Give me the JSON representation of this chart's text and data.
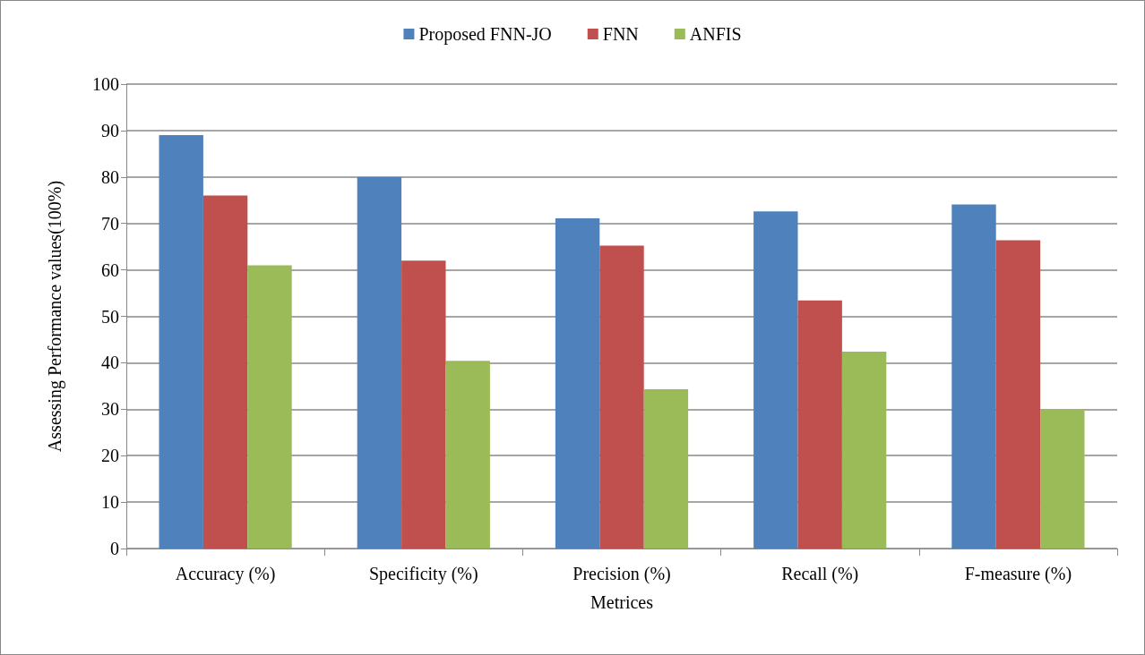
{
  "chart_data": {
    "type": "bar",
    "xlabel": "Metrices",
    "ylabel": "Assessing Performance values(100%)",
    "categories": [
      "Accuracy (%)",
      "Specificity (%)",
      "Precision (%)",
      "Recall (%)",
      "F-measure (%)"
    ],
    "series": [
      {
        "name": "Proposed FNN-JO",
        "color": "#4f81bd",
        "values": [
          89,
          80,
          71.1,
          72.6,
          74.1
        ]
      },
      {
        "name": "FNN",
        "color": "#c0504d",
        "values": [
          76,
          62,
          65.2,
          53.4,
          66.4
        ]
      },
      {
        "name": "ANFIS",
        "color": "#9bbb59",
        "values": [
          61,
          40.4,
          34.3,
          42.4,
          30
        ]
      }
    ],
    "ylim": [
      0,
      100
    ],
    "yticks": [
      0,
      10,
      20,
      30,
      40,
      50,
      60,
      70,
      80,
      90,
      100
    ],
    "grid": "y",
    "legend": "top"
  }
}
